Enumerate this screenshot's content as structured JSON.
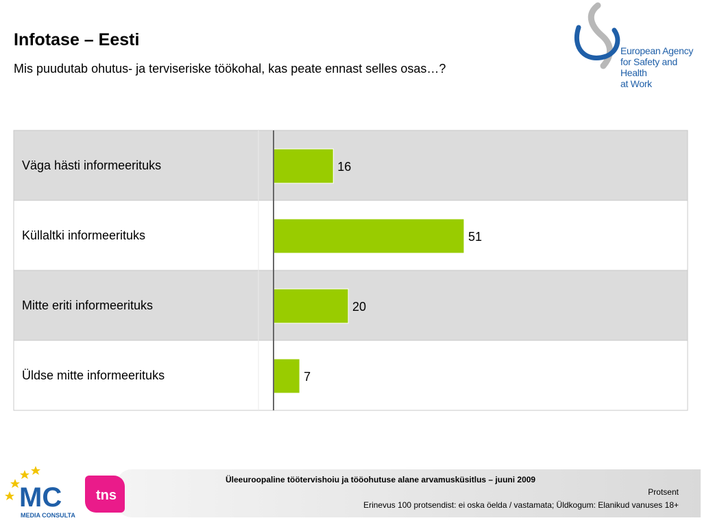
{
  "header": {
    "title": "Infotase – Eesti",
    "subtitle": "Mis puudutab ohutus- ja terviseriske töökohal, kas peate ennast selles osas…?"
  },
  "logos": {
    "agency_line1": "European Agency",
    "agency_line2": "for Safety and Health",
    "agency_line3": "at Work",
    "mc_name": "MEDIA CONSULTA",
    "mc_letters": "MC",
    "tns": "tns",
    "brand_color_agency": "#1f5fa8",
    "brand_color_tns": "#ea1b8a"
  },
  "chart_data": {
    "type": "bar",
    "orientation": "horizontal",
    "categories": [
      "Väga hästi informeerituks",
      "Küllaltki informeerituks",
      "Mitte eriti informeerituks",
      "Üldse mitte informeerituks"
    ],
    "values": [
      16,
      51,
      20,
      7
    ],
    "xlim": [
      0,
      100
    ],
    "bar_color": "#99cc00",
    "row_shading": [
      "#dcdcdc",
      "#ffffff",
      "#dcdcdc",
      "#ffffff"
    ],
    "data_labels": true
  },
  "footer": {
    "title": "Üleeuroopaline töötervishoiu ja tööohutuse alane arvamusküsitlus – juuni 2009",
    "unit": "Protsent",
    "note": "Erinevus 100 protsendist: ei oska öelda / vastamata; Üldkogum: Elanikud vanuses 18+"
  }
}
